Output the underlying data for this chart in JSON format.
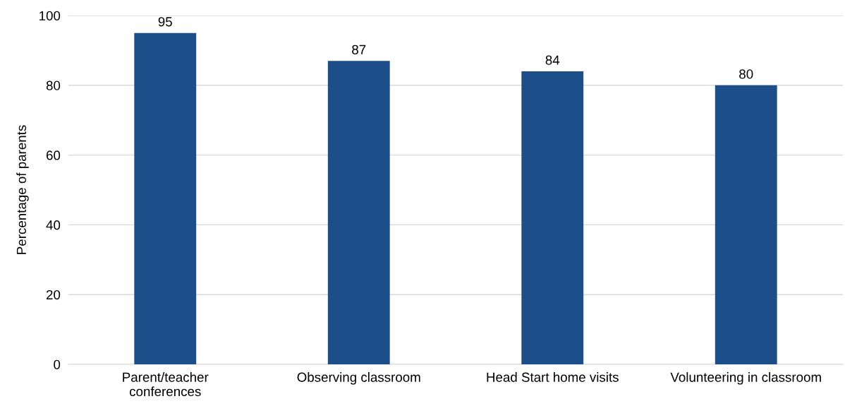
{
  "chart_data": {
    "type": "bar",
    "ylabel": "Percentage of parents",
    "categories": [
      "Parent/teacher\nconferences",
      "Observing classroom",
      "Head Start home visits",
      "Volunteering in classroom"
    ],
    "values": [
      95,
      87,
      84,
      80
    ],
    "color": "#1c4e89",
    "ylim": [
      0,
      100
    ],
    "yticks": [
      0,
      20,
      40,
      60,
      80,
      100
    ],
    "grid": "y",
    "data_labels": true
  }
}
